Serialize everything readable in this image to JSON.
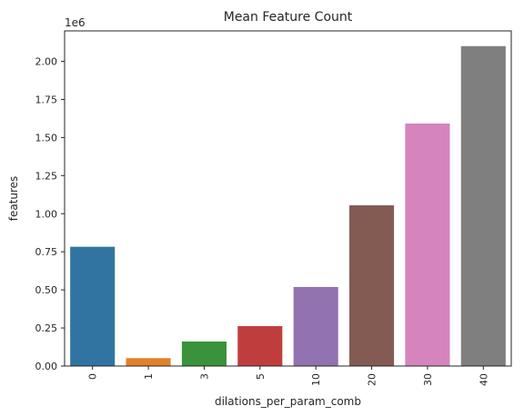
{
  "chart_data": {
    "type": "bar",
    "title": "Mean Feature Count",
    "xlabel": "dilations_per_param_comb",
    "ylabel": "features",
    "y_multiplier_label": "1e6",
    "y_multiplier": 1000000,
    "categories": [
      "0",
      "1",
      "3",
      "5",
      "10",
      "20",
      "30",
      "40"
    ],
    "values": [
      783000,
      52000,
      161000,
      262000,
      519000,
      1055000,
      1592000,
      2100000
    ],
    "colors": [
      "#3274a1",
      "#e1812c",
      "#3a923a",
      "#c03d3e",
      "#9372b2",
      "#845b53",
      "#d684bd",
      "#7f7f7f"
    ],
    "ylim": [
      0,
      2200000
    ],
    "yticks": [
      0,
      250000,
      500000,
      750000,
      1000000,
      1250000,
      1500000,
      1750000,
      2000000
    ],
    "ytick_labels": [
      "0.00",
      "0.25",
      "0.50",
      "0.75",
      "1.00",
      "1.25",
      "1.50",
      "1.75",
      "2.00"
    ],
    "xtick_rotation": "vertical",
    "grid": false,
    "legend": "none"
  }
}
